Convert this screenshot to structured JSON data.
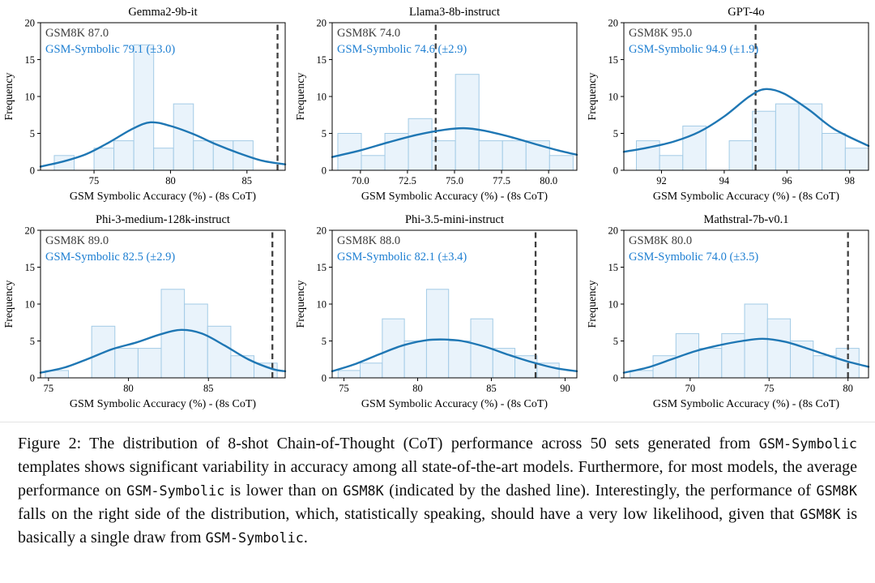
{
  "figure": {
    "caption_segments": [
      {
        "text": "Figure 2: The distribution of 8-shot Chain-of-Thought (CoT) performance across 50 sets generated from ",
        "mono": false
      },
      {
        "text": "GSM-Symbolic",
        "mono": true
      },
      {
        "text": " templates shows significant variability in accuracy among all state-of-the-art models. Furthermore, for most models, the average performance on ",
        "mono": false
      },
      {
        "text": "GSM-Symbolic",
        "mono": true
      },
      {
        "text": " is lower than on ",
        "mono": false
      },
      {
        "text": "GSM8K",
        "mono": true
      },
      {
        "text": " (indicated by the dashed line). Interestingly, the performance of ",
        "mono": false
      },
      {
        "text": "GSM8K",
        "mono": true
      },
      {
        "text": " falls on the right side of the distribution, which, statistically speaking, should have a very low likelihood, given that ",
        "mono": false
      },
      {
        "text": "GSM8K",
        "mono": true
      },
      {
        "text": " is basically a single draw from ",
        "mono": false
      },
      {
        "text": "GSM-Symbolic",
        "mono": true
      },
      {
        "text": ".",
        "mono": false
      }
    ]
  },
  "chart_style": {
    "bar_fill": "#e9f3fb",
    "bar_edge": "#a3cbe6",
    "curve_color": "#1f77b4",
    "dashed_line_color": "#3f3f3f",
    "gsm8k_text_color": "#3d3d3d",
    "symbolic_text_color": "#1e7fd2",
    "axis_color": "#000000"
  },
  "chart_data": [
    {
      "type": "histogram",
      "title": "Gemma2-9b-it",
      "xlabel": "GSM Symbolic Accuracy (%) - (8s CoT)",
      "ylabel": "Frequency",
      "xlim": [
        71.5,
        87.5
      ],
      "ylim": [
        0,
        20
      ],
      "xticks": [
        75,
        80,
        85
      ],
      "xtick_labels": [
        "75",
        "80",
        "85"
      ],
      "yticks": [
        0,
        5,
        10,
        15,
        20
      ],
      "bins": {
        "start": 72.4,
        "width": 1.3
      },
      "counts": [
        2,
        0,
        3,
        4,
        17,
        3,
        9,
        4,
        4,
        4
      ],
      "kde_points": [
        [
          71.5,
          0.5
        ],
        [
          73,
          1.2
        ],
        [
          74.5,
          2.2
        ],
        [
          76,
          3.8
        ],
        [
          77.5,
          5.6
        ],
        [
          78.7,
          6.5
        ],
        [
          80,
          6.0
        ],
        [
          81.5,
          4.9
        ],
        [
          83,
          3.5
        ],
        [
          84.5,
          2.3
        ],
        [
          86,
          1.3
        ],
        [
          87.5,
          0.8
        ]
      ],
      "gsm8k_score": 87.0,
      "gsm_symbolic_mean": 79.1,
      "gsm_symbolic_std": 3.0,
      "annotations": {
        "gsm8k": "GSM8K 87.0",
        "symbolic": "GSM-Symbolic 79.1 (±3.0)"
      }
    },
    {
      "type": "histogram",
      "title": "Llama3-8b-instruct",
      "xlabel": "GSM Symbolic Accuracy (%) - (8s CoT)",
      "ylabel": "Frequency",
      "xlim": [
        68.5,
        81.5
      ],
      "ylim": [
        0,
        20
      ],
      "xticks": [
        70,
        72.5,
        75,
        77.5,
        80
      ],
      "xtick_labels": [
        "70.0",
        "72.5",
        "75.0",
        "77.5",
        "80.0"
      ],
      "yticks": [
        0,
        5,
        10,
        15,
        20
      ],
      "bins": {
        "start": 68.8,
        "width": 1.25
      },
      "counts": [
        5,
        2,
        5,
        7,
        4,
        13,
        4,
        4,
        4,
        2
      ],
      "kde_points": [
        [
          68.5,
          1.8
        ],
        [
          70,
          2.7
        ],
        [
          71.5,
          3.8
        ],
        [
          73,
          4.8
        ],
        [
          74.5,
          5.5
        ],
        [
          75.5,
          5.7
        ],
        [
          76.5,
          5.4
        ],
        [
          78,
          4.5
        ],
        [
          79.5,
          3.4
        ],
        [
          80.5,
          2.7
        ],
        [
          81.5,
          2.1
        ]
      ],
      "gsm8k_score": 74.0,
      "gsm_symbolic_mean": 74.6,
      "gsm_symbolic_std": 2.9,
      "annotations": {
        "gsm8k": "GSM8K 74.0",
        "symbolic": "GSM-Symbolic 74.6 (±2.9)"
      }
    },
    {
      "type": "histogram",
      "title": "GPT-4o",
      "xlabel": "GSM Symbolic Accuracy (%) - (8s CoT)",
      "ylabel": "Frequency",
      "xlim": [
        90.8,
        98.6
      ],
      "ylim": [
        0,
        20
      ],
      "xticks": [
        92,
        94,
        96,
        98
      ],
      "xtick_labels": [
        "92",
        "94",
        "96",
        "98"
      ],
      "yticks": [
        0,
        5,
        10,
        15,
        20
      ],
      "bins": {
        "start": 91.2,
        "width": 0.74
      },
      "counts": [
        4,
        2,
        6,
        0,
        4,
        8,
        9,
        9,
        5,
        3
      ],
      "kde_points": [
        [
          90.8,
          2.5
        ],
        [
          91.6,
          3.1
        ],
        [
          92.4,
          3.9
        ],
        [
          93.2,
          5.2
        ],
        [
          94,
          7.3
        ],
        [
          94.8,
          10.0
        ],
        [
          95.3,
          11.0
        ],
        [
          95.9,
          10.4
        ],
        [
          96.7,
          8.2
        ],
        [
          97.5,
          5.6
        ],
        [
          98.6,
          3.3
        ]
      ],
      "gsm8k_score": 95.0,
      "gsm_symbolic_mean": 94.9,
      "gsm_symbolic_std": 1.9,
      "annotations": {
        "gsm8k": "GSM8K 95.0",
        "symbolic": "GSM-Symbolic 94.9 (±1.9)"
      }
    },
    {
      "type": "histogram",
      "title": "Phi-3-medium-128k-instruct",
      "xlabel": "GSM Symbolic Accuracy (%) - (8s CoT)",
      "ylabel": "Frequency",
      "xlim": [
        74.5,
        89.8
      ],
      "ylim": [
        0,
        20
      ],
      "xticks": [
        75,
        80,
        85
      ],
      "xtick_labels": [
        "75",
        "80",
        "85"
      ],
      "yticks": [
        0,
        5,
        10,
        15,
        20
      ],
      "bins": {
        "start": 74.8,
        "width": 1.45
      },
      "counts": [
        1,
        0,
        7,
        4,
        4,
        12,
        10,
        7,
        3,
        2
      ],
      "kde_points": [
        [
          74.5,
          0.7
        ],
        [
          76,
          1.4
        ],
        [
          77.5,
          2.6
        ],
        [
          79,
          3.9
        ],
        [
          80.5,
          4.8
        ],
        [
          82,
          5.9
        ],
        [
          83.3,
          6.5
        ],
        [
          84.6,
          6.0
        ],
        [
          86,
          4.4
        ],
        [
          87.5,
          2.5
        ],
        [
          89,
          1.2
        ],
        [
          89.8,
          0.9
        ]
      ],
      "gsm8k_score": 89.0,
      "gsm_symbolic_mean": 82.5,
      "gsm_symbolic_std": 2.9,
      "annotations": {
        "gsm8k": "GSM8K 89.0",
        "symbolic": "GSM-Symbolic 82.5 (±2.9)"
      }
    },
    {
      "type": "histogram",
      "title": "Phi-3.5-mini-instruct",
      "xlabel": "GSM Symbolic Accuracy (%) - (8s CoT)",
      "ylabel": "Frequency",
      "xlim": [
        74.2,
        90.8
      ],
      "ylim": [
        0,
        20
      ],
      "xticks": [
        75,
        80,
        85,
        90
      ],
      "xtick_labels": [
        "75",
        "80",
        "85",
        "90"
      ],
      "yticks": [
        0,
        5,
        10,
        15,
        20
      ],
      "bins": {
        "start": 74.6,
        "width": 1.5
      },
      "counts": [
        1,
        2,
        8,
        5,
        12,
        5,
        8,
        4,
        3,
        2
      ],
      "kde_points": [
        [
          74.2,
          0.9
        ],
        [
          75.8,
          1.9
        ],
        [
          77.4,
          3.2
        ],
        [
          79,
          4.4
        ],
        [
          80.6,
          5.1
        ],
        [
          81.8,
          5.2
        ],
        [
          83,
          5.0
        ],
        [
          84.6,
          4.2
        ],
        [
          86.2,
          3.1
        ],
        [
          87.8,
          2.1
        ],
        [
          89.4,
          1.3
        ],
        [
          90.8,
          0.9
        ]
      ],
      "gsm8k_score": 88.0,
      "gsm_symbolic_mean": 82.1,
      "gsm_symbolic_std": 3.4,
      "annotations": {
        "gsm8k": "GSM8K 88.0",
        "symbolic": "GSM-Symbolic 82.1 (±3.4)"
      }
    },
    {
      "type": "histogram",
      "title": "Mathstral-7b-v0.1",
      "xlabel": "GSM Symbolic Accuracy (%) - (8s CoT)",
      "ylabel": "Frequency",
      "xlim": [
        65.8,
        81.3
      ],
      "ylim": [
        0,
        20
      ],
      "xticks": [
        70,
        75,
        80
      ],
      "xtick_labels": [
        "70",
        "75",
        "80"
      ],
      "yticks": [
        0,
        5,
        10,
        15,
        20
      ],
      "bins": {
        "start": 66.2,
        "width": 1.45
      },
      "counts": [
        1,
        3,
        6,
        4,
        6,
        10,
        8,
        5,
        3,
        4
      ],
      "kde_points": [
        [
          65.8,
          0.7
        ],
        [
          67.3,
          1.4
        ],
        [
          68.8,
          2.5
        ],
        [
          70.3,
          3.6
        ],
        [
          71.8,
          4.4
        ],
        [
          73.3,
          5.0
        ],
        [
          74.6,
          5.3
        ],
        [
          76,
          4.9
        ],
        [
          77.4,
          4.0
        ],
        [
          78.8,
          3.0
        ],
        [
          80,
          2.2
        ],
        [
          81.3,
          1.5
        ]
      ],
      "gsm8k_score": 80.0,
      "gsm_symbolic_mean": 74.0,
      "gsm_symbolic_std": 3.5,
      "annotations": {
        "gsm8k": "GSM8K 80.0",
        "symbolic": "GSM-Symbolic 74.0 (±3.5)"
      }
    }
  ]
}
